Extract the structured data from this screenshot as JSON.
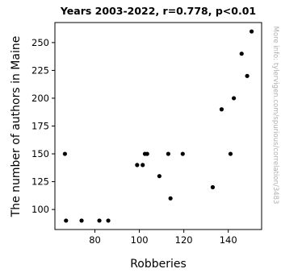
{
  "chart_data": {
    "type": "scatter",
    "title": "Years 2003-2022, r=0.778, p<0.01",
    "xlabel": "Robberies",
    "ylabel": "The number of authors in Maine",
    "side_note": "More info: tylervigen.com/spurious/correlation/3483",
    "xlim": [
      62,
      155
    ],
    "ylim": [
      82,
      268
    ],
    "x_ticks": [
      80,
      100,
      120,
      140
    ],
    "y_ticks": [
      100,
      125,
      150,
      175,
      200,
      225,
      250
    ],
    "grid": false,
    "point_color": "#000000",
    "points": [
      {
        "x": 66.5,
        "y": 150
      },
      {
        "x": 67,
        "y": 90
      },
      {
        "x": 74,
        "y": 90
      },
      {
        "x": 82,
        "y": 90
      },
      {
        "x": 86,
        "y": 90
      },
      {
        "x": 99,
        "y": 140
      },
      {
        "x": 101.5,
        "y": 140
      },
      {
        "x": 102.5,
        "y": 150
      },
      {
        "x": 103.5,
        "y": 150
      },
      {
        "x": 109,
        "y": 130
      },
      {
        "x": 113,
        "y": 150
      },
      {
        "x": 114,
        "y": 110
      },
      {
        "x": 119.5,
        "y": 150
      },
      {
        "x": 133,
        "y": 120
      },
      {
        "x": 137,
        "y": 190
      },
      {
        "x": 141,
        "y": 150
      },
      {
        "x": 142.5,
        "y": 200
      },
      {
        "x": 146,
        "y": 240
      },
      {
        "x": 148.5,
        "y": 220
      },
      {
        "x": 150.5,
        "y": 260
      }
    ]
  }
}
